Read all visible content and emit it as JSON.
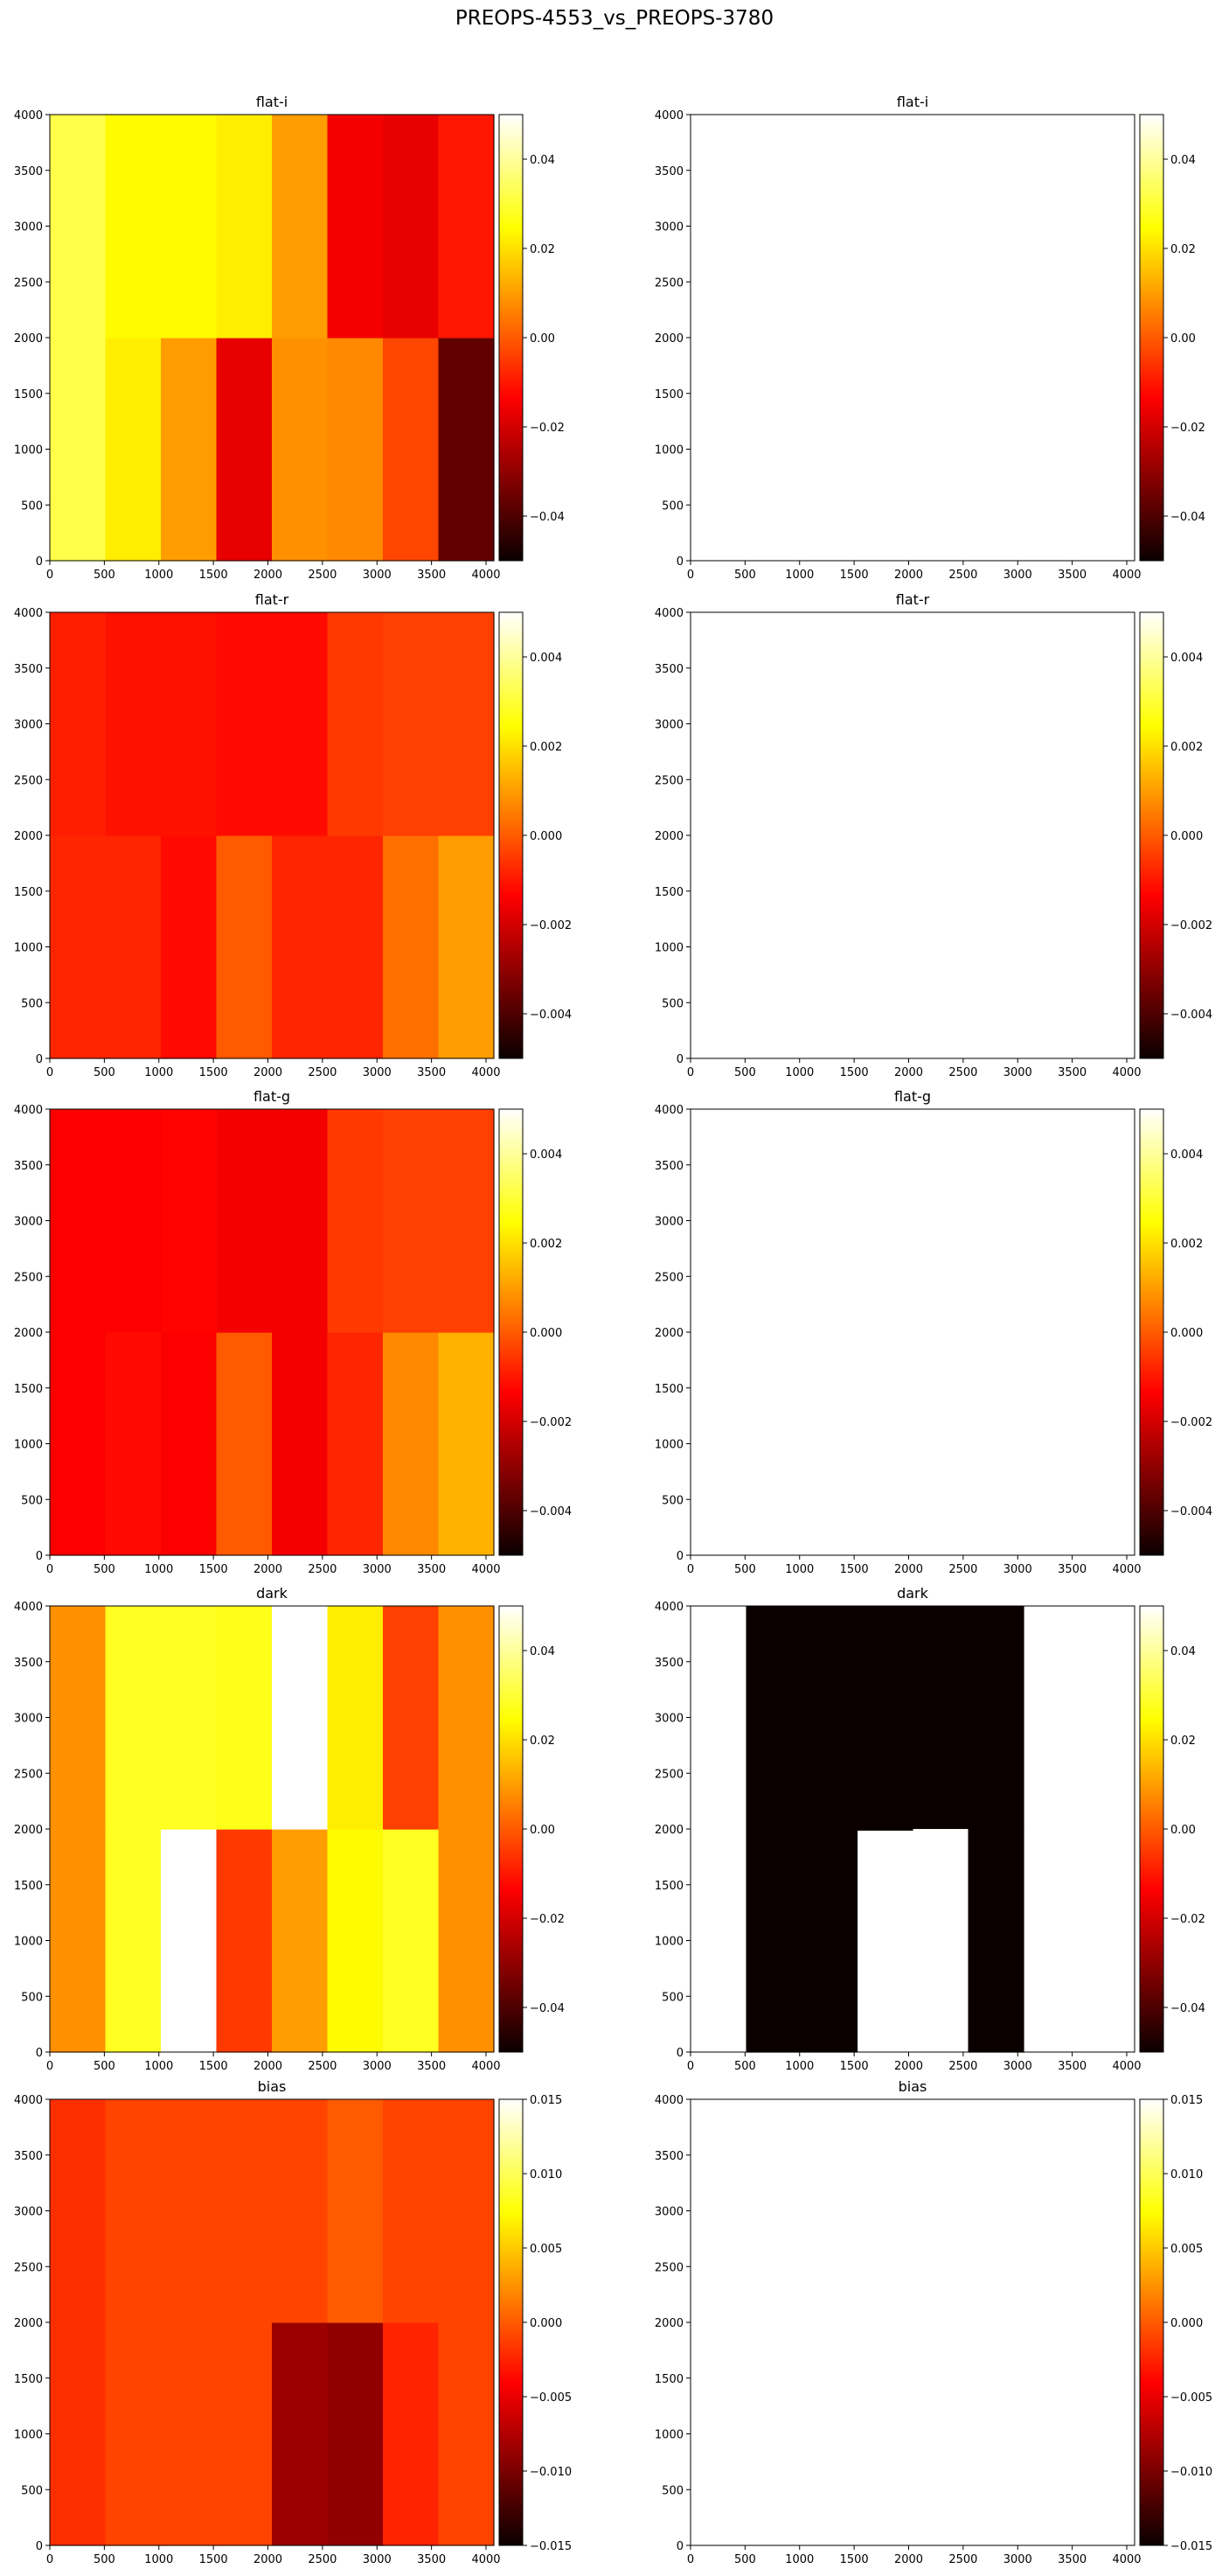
{
  "page_title": "PREOPS-4553_vs_PREOPS-3780",
  "colormap": {
    "name": "hot",
    "stops": [
      [
        0.0,
        "#0b0000"
      ],
      [
        0.365,
        "#ff0000"
      ],
      [
        0.746,
        "#ffff00"
      ],
      [
        1.0,
        "#ffffff"
      ]
    ]
  },
  "chart_data": [
    {
      "type": "heatmap",
      "title": "flat-i",
      "x_ticks": [
        0,
        500,
        1000,
        1500,
        2000,
        2500,
        3000,
        3500,
        4000
      ],
      "y_ticks": [
        0,
        500,
        1000,
        1500,
        2000,
        2500,
        3000,
        3500,
        4000
      ],
      "xlim": [
        0,
        4072
      ],
      "ylim": [
        0,
        4000
      ],
      "x_edges": [
        0,
        509,
        1018,
        1527,
        2036,
        2545,
        3054,
        3563,
        4072
      ],
      "y_edges": [
        0,
        2000,
        4000
      ],
      "clim": [
        -0.05,
        0.05
      ],
      "colorbar_ticks": [
        0.04,
        0.02,
        0.0,
        -0.02,
        -0.04
      ],
      "colorbar_tick_labels": [
        "0.04",
        "0.02",
        "0.00",
        "−0.02",
        "−0.04"
      ],
      "values": [
        [
          0.032,
          0.024,
          0.024,
          0.022,
          0.01,
          -0.015,
          -0.017,
          -0.01
        ],
        [
          0.032,
          0.022,
          0.01,
          -0.017,
          0.008,
          0.007,
          -0.003,
          -0.037
        ]
      ]
    },
    {
      "type": "heatmap",
      "title": "flat-i",
      "x_ticks": [
        0,
        500,
        1000,
        1500,
        2000,
        2500,
        3000,
        3500,
        4000
      ],
      "y_ticks": [
        0,
        500,
        1000,
        1500,
        2000,
        2500,
        3000,
        3500,
        4000
      ],
      "xlim": [
        0,
        4072
      ],
      "ylim": [
        0,
        4000
      ],
      "x_edges": [
        0,
        509,
        1018,
        1527,
        2036,
        2545,
        3054,
        3563,
        4072
      ],
      "y_edges": [
        0,
        2000,
        4000
      ],
      "clim": [
        -0.05,
        0.05
      ],
      "colorbar_ticks": [
        0.04,
        0.02,
        0.0,
        -0.02,
        -0.04
      ],
      "colorbar_tick_labels": [
        "0.04",
        "0.02",
        "0.00",
        "−0.02",
        "−0.04"
      ],
      "values": null
    },
    {
      "type": "heatmap",
      "title": "flat-r",
      "x_ticks": [
        0,
        500,
        1000,
        1500,
        2000,
        2500,
        3000,
        3500,
        4000
      ],
      "y_ticks": [
        0,
        500,
        1000,
        1500,
        2000,
        2500,
        3000,
        3500,
        4000
      ],
      "xlim": [
        0,
        4072
      ],
      "ylim": [
        0,
        4000
      ],
      "x_edges": [
        0,
        509,
        1018,
        1527,
        2036,
        2545,
        3054,
        3563,
        4072
      ],
      "y_edges": [
        0,
        2000,
        4000
      ],
      "clim": [
        -0.005,
        0.005
      ],
      "colorbar_ticks": [
        0.004,
        0.002,
        0.0,
        -0.002,
        -0.004
      ],
      "colorbar_tick_labels": [
        "0.004",
        "0.002",
        "0.000",
        "−0.002",
        "−0.004"
      ],
      "values": [
        [
          -0.0009,
          -0.0011,
          -0.0011,
          -0.0012,
          -0.0012,
          -0.0005,
          -0.0004,
          -0.0004
        ],
        [
          -0.0008,
          -0.0008,
          -0.0012,
          0.0,
          -0.0008,
          -0.0008,
          0.0003,
          0.001
        ]
      ]
    },
    {
      "type": "heatmap",
      "title": "flat-r",
      "x_ticks": [
        0,
        500,
        1000,
        1500,
        2000,
        2500,
        3000,
        3500,
        4000
      ],
      "y_ticks": [
        0,
        500,
        1000,
        1500,
        2000,
        2500,
        3000,
        3500,
        4000
      ],
      "xlim": [
        0,
        4072
      ],
      "ylim": [
        0,
        4000
      ],
      "x_edges": [
        0,
        509,
        1018,
        1527,
        2036,
        2545,
        3054,
        3563,
        4072
      ],
      "y_edges": [
        0,
        2000,
        4000
      ],
      "clim": [
        -0.005,
        0.005
      ],
      "colorbar_ticks": [
        0.004,
        0.002,
        0.0,
        -0.002,
        -0.004
      ],
      "colorbar_tick_labels": [
        "0.004",
        "0.002",
        "0.000",
        "−0.002",
        "−0.004"
      ],
      "values": null
    },
    {
      "type": "heatmap",
      "title": "flat-g",
      "x_ticks": [
        0,
        500,
        1000,
        1500,
        2000,
        2500,
        3000,
        3500,
        4000
      ],
      "y_ticks": [
        0,
        500,
        1000,
        1500,
        2000,
        2500,
        3000,
        3500,
        4000
      ],
      "xlim": [
        0,
        4072
      ],
      "ylim": [
        0,
        4000
      ],
      "x_edges": [
        0,
        509,
        1018,
        1527,
        2036,
        2545,
        3054,
        3563,
        4072
      ],
      "y_edges": [
        0,
        2000,
        4000
      ],
      "clim": [
        -0.005,
        0.005
      ],
      "colorbar_ticks": [
        0.004,
        0.002,
        0.0,
        -0.002,
        -0.004
      ],
      "colorbar_tick_labels": [
        "0.004",
        "0.002",
        "0.000",
        "−0.002",
        "−0.004"
      ],
      "values": [
        [
          -0.0014,
          -0.0014,
          -0.0013,
          -0.0015,
          -0.0015,
          -0.0005,
          -0.0004,
          -0.0004
        ],
        [
          -0.0014,
          -0.0012,
          -0.0014,
          0.0,
          -0.0015,
          -0.0008,
          0.0007,
          0.0013
        ]
      ]
    },
    {
      "type": "heatmap",
      "title": "flat-g",
      "x_ticks": [
        0,
        500,
        1000,
        1500,
        2000,
        2500,
        3000,
        3500,
        4000
      ],
      "y_ticks": [
        0,
        500,
        1000,
        1500,
        2000,
        2500,
        3000,
        3500,
        4000
      ],
      "xlim": [
        0,
        4072
      ],
      "ylim": [
        0,
        4000
      ],
      "x_edges": [
        0,
        509,
        1018,
        1527,
        2036,
        2545,
        3054,
        3563,
        4072
      ],
      "y_edges": [
        0,
        2000,
        4000
      ],
      "clim": [
        -0.005,
        0.005
      ],
      "colorbar_ticks": [
        0.004,
        0.002,
        0.0,
        -0.002,
        -0.004
      ],
      "colorbar_tick_labels": [
        "0.004",
        "0.002",
        "0.000",
        "−0.002",
        "−0.004"
      ],
      "values": null
    },
    {
      "type": "heatmap",
      "title": "dark",
      "x_ticks": [
        0,
        500,
        1000,
        1500,
        2000,
        2500,
        3000,
        3500,
        4000
      ],
      "y_ticks": [
        0,
        500,
        1000,
        1500,
        2000,
        2500,
        3000,
        3500,
        4000
      ],
      "xlim": [
        0,
        4072
      ],
      "ylim": [
        0,
        4000
      ],
      "x_edges": [
        0,
        509,
        1018,
        1527,
        2036,
        2545,
        3054,
        3563,
        4072
      ],
      "y_edges": [
        0,
        2000,
        4000
      ],
      "clim": [
        -0.05,
        0.05
      ],
      "colorbar_ticks": [
        0.04,
        0.02,
        0.0,
        -0.02,
        -0.04
      ],
      "colorbar_tick_labels": [
        "0.04",
        "0.02",
        "0.00",
        "−0.02",
        "−0.04"
      ],
      "values": [
        [
          0.008,
          0.028,
          0.028,
          0.027,
          0.08,
          0.022,
          -0.004,
          0.008
        ],
        [
          0.008,
          0.028,
          0.08,
          -0.005,
          0.01,
          0.024,
          0.028,
          0.008
        ]
      ]
    },
    {
      "type": "heatmap",
      "title": "dark",
      "x_ticks": [
        0,
        500,
        1000,
        1500,
        2000,
        2500,
        3000,
        3500,
        4000
      ],
      "y_ticks": [
        0,
        500,
        1000,
        1500,
        2000,
        2500,
        3000,
        3500,
        4000
      ],
      "xlim": [
        0,
        4072
      ],
      "ylim": [
        0,
        4000
      ],
      "x_edges": [
        0,
        509,
        1018,
        1527,
        2036,
        2545,
        3054,
        3563,
        4072
      ],
      "y_edges": [
        0,
        1990,
        2005,
        4000
      ],
      "clim": [
        -0.05,
        0.05
      ],
      "colorbar_ticks": [
        0.04,
        0.02,
        0.0,
        -0.02,
        -0.04
      ],
      "colorbar_tick_labels": [
        "0.04",
        "0.02",
        "0.00",
        "−0.02",
        "−0.04"
      ],
      "values": [
        [
          null,
          -1,
          -1,
          -1,
          -1,
          -1,
          null,
          null
        ],
        [
          null,
          -1,
          -1,
          -1,
          null,
          -1,
          null,
          null
        ],
        [
          null,
          -1,
          -1,
          null,
          null,
          -1,
          null,
          null
        ]
      ]
    },
    {
      "type": "heatmap",
      "title": "bias",
      "x_ticks": [
        0,
        500,
        1000,
        1500,
        2000,
        2500,
        3000,
        3500,
        4000
      ],
      "y_ticks": [
        0,
        500,
        1000,
        1500,
        2000,
        2500,
        3000,
        3500,
        4000
      ],
      "xlim": [
        0,
        4072
      ],
      "ylim": [
        0,
        4000
      ],
      "x_edges": [
        0,
        509,
        1018,
        1527,
        2036,
        2545,
        3054,
        3563,
        4072
      ],
      "y_edges": [
        0,
        2000,
        4000
      ],
      "clim": [
        -0.015,
        0.015
      ],
      "colorbar_ticks": [
        0.015,
        0.01,
        0.005,
        0.0,
        -0.005,
        -0.01,
        -0.015
      ],
      "colorbar_tick_labels": [
        "0.015",
        "0.010",
        "0.005",
        "0.000",
        "−0.005",
        "−0.010",
        "−0.015"
      ],
      "values": [
        [
          -0.002,
          -0.001,
          -0.001,
          -0.001,
          -0.001,
          0.0,
          -0.001,
          -0.001
        ],
        [
          -0.002,
          -0.001,
          -0.001,
          -0.001,
          -0.0085,
          -0.009,
          -0.0025,
          -0.001
        ]
      ]
    },
    {
      "type": "heatmap",
      "title": "bias",
      "x_ticks": [
        0,
        500,
        1000,
        1500,
        2000,
        2500,
        3000,
        3500,
        4000
      ],
      "y_ticks": [
        0,
        500,
        1000,
        1500,
        2000,
        2500,
        3000,
        3500,
        4000
      ],
      "xlim": [
        0,
        4072
      ],
      "ylim": [
        0,
        4000
      ],
      "x_edges": [
        0,
        509,
        1018,
        1527,
        2036,
        2545,
        3054,
        3563,
        4072
      ],
      "y_edges": [
        0,
        2000,
        4000
      ],
      "clim": [
        -0.015,
        0.015
      ],
      "colorbar_ticks": [
        0.015,
        0.01,
        0.005,
        0.0,
        -0.005,
        -0.01,
        -0.015
      ],
      "colorbar_tick_labels": [
        "0.015",
        "0.010",
        "0.005",
        "0.000",
        "−0.005",
        "−0.010",
        "−0.015"
      ],
      "values": null
    }
  ]
}
